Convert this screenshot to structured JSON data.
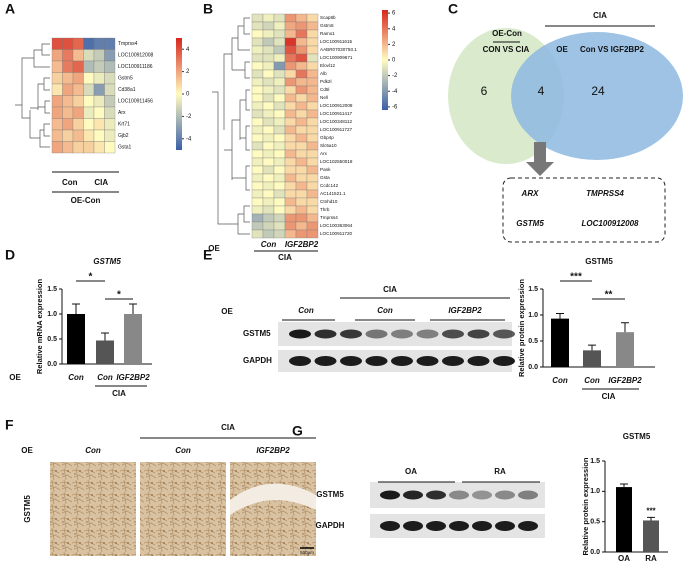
{
  "panel_labels": [
    "A",
    "B",
    "C",
    "D",
    "E",
    "F",
    "G"
  ],
  "chart_data": [
    {
      "type": "heatmap",
      "rows": [
        "Tmprss4",
        "LOC100912008",
        "LOC100911186",
        "Gstm5",
        "Cd38a1",
        "LOC100911456",
        "Arx",
        "Krt71",
        "Gjb2",
        "Gsta1"
      ],
      "values": [
        [
          4,
          4,
          3.5,
          -4.5,
          -4,
          -4
        ],
        [
          2,
          3,
          1.5,
          -1,
          -1.5,
          -3
        ],
        [
          1.5,
          3,
          3.5,
          -2,
          -1.5,
          -2
        ],
        [
          1,
          1.5,
          2,
          0,
          -0.5,
          -1
        ],
        [
          0.5,
          2,
          1.5,
          -1,
          -3,
          -1
        ],
        [
          2,
          1.5,
          1,
          0,
          -0.5,
          -1.5
        ],
        [
          2,
          1.5,
          2,
          -0.5,
          0,
          -1
        ],
        [
          1.5,
          2,
          1,
          0,
          0.5,
          -0.5
        ],
        [
          1.5,
          1,
          1.5,
          0.5,
          0,
          -0.5
        ],
        [
          2,
          1.5,
          1,
          1,
          0.5,
          0
        ]
      ],
      "zlim": [
        -5,
        5
      ],
      "zticks": [
        4,
        2,
        0,
        -2,
        -4
      ],
      "colors": [
        "#3a5fa8",
        "#fffbc0",
        "#d7261e"
      ],
      "groups": [
        "Con",
        "CIA"
      ],
      "group_label": "OE-Con"
    },
    {
      "type": "heatmap",
      "rows": [
        "Scap8b",
        "Gstm5",
        "Ramo1",
        "LOC100911615",
        "AABR07030793.1",
        "LOC100909671",
        "Elovl12",
        "Alb",
        "Pdk2l",
        "Cd5l",
        "Nell",
        "LOC100912008",
        "LOC100911417",
        "LOC100348112",
        "LOC100911727",
        "Gbp4p",
        "Slc5a10",
        "Arx",
        "LOC102550018",
        "Pank",
        "Gsta",
        "Ccdc142",
        "AC141521.1",
        "Ctnhd10",
        "Thrb",
        "Tmprss4",
        "LOC100363064",
        "LOC100911720"
      ],
      "values": [
        [
          -1,
          -0.5,
          -1,
          3,
          2,
          1
        ],
        [
          -1,
          -1.5,
          -0.5,
          2.5,
          3,
          2
        ],
        [
          0,
          -0.5,
          -1,
          2,
          4,
          1
        ],
        [
          -1,
          -2,
          -1,
          6,
          2,
          1
        ],
        [
          -0.5,
          -1,
          -2,
          5,
          3,
          1
        ],
        [
          -1,
          -1,
          -0.5,
          4,
          5,
          -1
        ],
        [
          0,
          -0.5,
          -4,
          3,
          2,
          1
        ],
        [
          -1,
          0,
          -1,
          1,
          4,
          2
        ],
        [
          -0.5,
          -1,
          -0.5,
          3,
          2,
          2
        ],
        [
          0,
          -0.5,
          -1,
          1,
          3,
          2
        ],
        [
          0,
          -1,
          0,
          2,
          1,
          2
        ],
        [
          -0.5,
          0,
          -1,
          1,
          2,
          1
        ],
        [
          -1,
          -0.5,
          0,
          2,
          1,
          2
        ],
        [
          0,
          -1,
          -0.5,
          1,
          2,
          1
        ],
        [
          -0.5,
          0,
          -1,
          2,
          1,
          1
        ],
        [
          0,
          -0.5,
          0,
          1,
          2,
          1
        ],
        [
          -1,
          0,
          -0.5,
          1,
          1,
          2
        ],
        [
          0,
          -0.5,
          0,
          2,
          1,
          1
        ],
        [
          -0.5,
          0,
          -0.5,
          1,
          2,
          1
        ],
        [
          0,
          -1,
          0,
          1,
          1,
          2
        ],
        [
          -0.5,
          0,
          -0.5,
          2,
          1,
          1
        ],
        [
          0,
          -0.5,
          0,
          1,
          2,
          1
        ],
        [
          -0.5,
          0,
          -1,
          1,
          1,
          2
        ],
        [
          0,
          -0.5,
          0,
          2,
          1,
          1
        ],
        [
          -0.5,
          -1,
          0,
          1,
          2,
          1
        ],
        [
          -3,
          -2,
          -1.5,
          3,
          3,
          2
        ],
        [
          -2,
          -1.5,
          -1,
          3,
          2,
          3
        ],
        [
          -1,
          -2,
          -1.5,
          2,
          3,
          3
        ]
      ],
      "zlim": [
        -6.4,
        6.4
      ],
      "zticks": [
        6,
        4,
        2,
        0,
        -2,
        -4,
        -6
      ],
      "colors": [
        "#3a5fa8",
        "#fffbc0",
        "#d7261e"
      ],
      "groups": [
        "Con",
        "IGF2BP2"
      ],
      "group_label": "CIA",
      "row_label": "OE"
    },
    {
      "type": "bar",
      "title": "GSTM5",
      "ylabel": "Relative mRNA expression",
      "categories": [
        "Con",
        "Con",
        "IGF2BP2"
      ],
      "values": [
        1.0,
        0.47,
        1.0
      ],
      "errors": [
        0.2,
        0.15,
        0.2
      ],
      "colors": [
        "#000000",
        "#555555",
        "#888888"
      ],
      "ylim": [
        0,
        1.5
      ],
      "yticks": [
        {
          "value": 0,
          "label": "0.0"
        },
        0.5,
        {
          "value": 1,
          "label": "1.0"
        },
        1.5
      ],
      "row_label": "OE",
      "group_label": "CIA",
      "annotations": [
        "*",
        "*"
      ]
    },
    {
      "type": "bar",
      "title": "GSTM5",
      "ylabel": "Relative protein expression",
      "categories": [
        "Con",
        "Con",
        "IGF2BP2"
      ],
      "values": [
        0.93,
        0.32,
        0.67
      ],
      "errors": [
        0.1,
        0.1,
        0.18
      ],
      "colors": [
        "#000000",
        "#555555",
        "#888888"
      ],
      "ylim": [
        0,
        1.5
      ],
      "yticks": [
        {
          "value": 0,
          "label": "0.0"
        },
        0.5,
        {
          "value": 1,
          "label": "1.0"
        },
        1.5
      ],
      "group_label": "CIA",
      "annotations": [
        "***",
        "**"
      ]
    },
    {
      "type": "bar",
      "title": "GSTM5",
      "ylabel": "Relative protein expression",
      "categories": [
        "OA",
        "RA"
      ],
      "values": [
        1.07,
        0.52
      ],
      "errors": [
        0.05,
        0.05
      ],
      "colors": [
        "#000000",
        "#555555"
      ],
      "ylim": [
        0,
        1.5
      ],
      "yticks": [
        {
          "value": 0,
          "label": "0.0"
        },
        0.5,
        {
          "value": 1,
          "label": "1.0"
        },
        1.5
      ],
      "annotations": [
        "***"
      ]
    }
  ],
  "venn": {
    "left_title": "OE-Con",
    "left_subtitle": "CON VS CIA",
    "right_title": "CIA",
    "right_prefix": "OE",
    "right_subtitle": "Con VS IGF2BP2",
    "counts": [
      6,
      4,
      24
    ],
    "genes": [
      "ARX",
      "TMPRSS4",
      "GSTM5",
      "LOC100912008"
    ]
  },
  "blot_e": {
    "row_label": "OE",
    "group_label": "CIA",
    "lanes": [
      "Con",
      "Con",
      "IGF2BP2"
    ],
    "bands": [
      "GSTM5",
      "GAPDH"
    ]
  },
  "ihc_f": {
    "row_label": "OE",
    "group_label": "CIA",
    "groups": [
      "Con",
      "Con",
      "IGF2BP2"
    ],
    "stain": "GSTM5",
    "scale_bar": "500μm"
  },
  "blot_g": {
    "groups": [
      "OA",
      "RA"
    ],
    "bands": [
      "GSTM5",
      "GAPDH"
    ]
  }
}
